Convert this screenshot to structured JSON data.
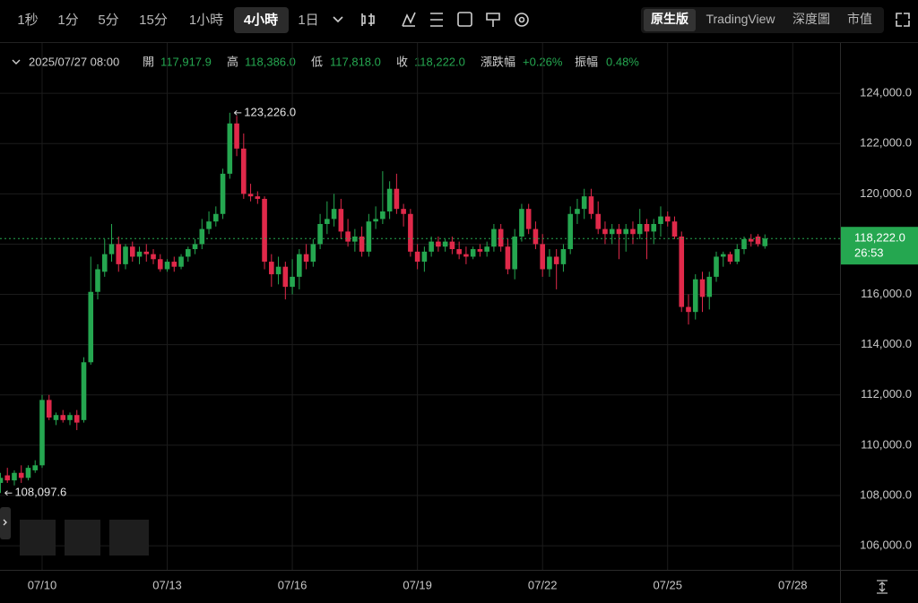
{
  "toolbar": {
    "intervals": [
      "1秒",
      "1分",
      "5分",
      "15分",
      "1小時",
      "4小時",
      "1日"
    ],
    "views": [
      "原生版",
      "TradingView",
      "深度圖",
      "市值"
    ]
  },
  "header": {
    "time": "2025/07/27 08:00",
    "fields": [
      {
        "label": "開",
        "value": "117,917.9"
      },
      {
        "label": "高",
        "value": "118,386.0"
      },
      {
        "label": "低",
        "value": "117,818.0"
      },
      {
        "label": "收",
        "value": "118,222.0"
      },
      {
        "label": "漲跌幅",
        "value": "+0.26%"
      },
      {
        "label": "振幅",
        "value": "0.48%"
      }
    ]
  },
  "chart_data": {
    "type": "candlestick",
    "up_color": "#25a750",
    "down_color": "#e0294a",
    "grid": true,
    "open": [
      108500,
      108800,
      108600,
      108900,
      108700,
      109000,
      109200,
      111800,
      111000,
      111200,
      111000,
      111200,
      111000,
      113300,
      116100,
      116900,
      117600,
      118000,
      117200,
      117900,
      117500,
      117700,
      117600,
      117400,
      117000,
      117300,
      117100,
      117500,
      117800,
      118000,
      118600,
      118900,
      119200,
      120800,
      122800,
      121800,
      120000,
      119900,
      119800,
      117300,
      116800,
      117100,
      116300,
      116700,
      117600,
      117300,
      118000,
      118800,
      119000,
      119400,
      118500,
      118100,
      118300,
      117700,
      118900,
      119000,
      119300,
      120200,
      119400,
      119200,
      117700,
      117300,
      117700,
      118100,
      117900,
      118100,
      117800,
      117600,
      117500,
      117800,
      117700,
      117900,
      118600,
      117900,
      117000,
      118300,
      119400,
      118600,
      118000,
      117000,
      117500,
      117200,
      117800,
      119200,
      119400,
      119900,
      119200,
      118600,
      118400,
      118600,
      118400,
      118600,
      118400,
      118800,
      118500,
      118800,
      119100,
      118900,
      118300,
      115500,
      115300,
      116600,
      115900,
      116700,
      117500,
      117600,
      117300,
      117800,
      118200,
      118300,
      117917.9
    ],
    "high": [
      108900,
      109100,
      109000,
      109200,
      109200,
      109400,
      112000,
      112000,
      111300,
      111400,
      111300,
      111400,
      113500,
      117500,
      117200,
      118200,
      118800,
      118300,
      118000,
      118100,
      117900,
      118000,
      117800,
      117600,
      117400,
      117500,
      117600,
      117900,
      118200,
      119000,
      119300,
      119500,
      121000,
      123226,
      123100,
      122400,
      120400,
      120100,
      119900,
      117600,
      117500,
      117300,
      117400,
      117800,
      118000,
      118200,
      119200,
      119700,
      120000,
      119800,
      119000,
      118600,
      118700,
      119200,
      119500,
      120900,
      120500,
      120800,
      119600,
      119400,
      118000,
      117900,
      118300,
      118300,
      118200,
      118300,
      118100,
      117900,
      117900,
      118000,
      118100,
      118800,
      118800,
      118200,
      118600,
      119600,
      119600,
      118900,
      118400,
      117800,
      117800,
      118000,
      119500,
      119800,
      120200,
      120200,
      119700,
      118900,
      118800,
      118800,
      118800,
      118900,
      119400,
      119000,
      119000,
      119500,
      119300,
      119100,
      118500,
      116000,
      116800,
      116900,
      116900,
      117700,
      117700,
      117700,
      118000,
      118300,
      118400,
      118400,
      118386
    ],
    "low": [
      108097.6,
      108500,
      108400,
      108500,
      108600,
      108900,
      109100,
      111000,
      110800,
      110900,
      110800,
      110600,
      110900,
      113200,
      115800,
      116700,
      117300,
      116900,
      117000,
      117300,
      117200,
      117300,
      117200,
      116900,
      116900,
      116900,
      117000,
      117300,
      117600,
      117800,
      118400,
      118700,
      119000,
      120600,
      121500,
      119800,
      119700,
      119600,
      117000,
      116300,
      116400,
      115800,
      116000,
      116200,
      117000,
      117100,
      117800,
      118400,
      118700,
      118200,
      117900,
      117700,
      117500,
      117500,
      118600,
      118800,
      119000,
      119200,
      118700,
      117500,
      117000,
      116900,
      117500,
      117700,
      117700,
      117600,
      117400,
      117200,
      117400,
      117500,
      117500,
      117700,
      117700,
      116800,
      116600,
      118100,
      118400,
      117800,
      116700,
      116700,
      116200,
      116900,
      117600,
      118800,
      119000,
      119000,
      118400,
      118000,
      118000,
      117400,
      117700,
      118000,
      118200,
      117400,
      118000,
      118300,
      118700,
      118200,
      115300,
      114800,
      115000,
      115300,
      115400,
      116500,
      117100,
      117200,
      117200,
      117600,
      117900,
      117900,
      117818
    ],
    "close": [
      108700,
      108600,
      108900,
      108700,
      109100,
      109200,
      111800,
      111100,
      111200,
      111000,
      111200,
      110900,
      113300,
      116100,
      117000,
      117600,
      118000,
      117200,
      117900,
      117500,
      117700,
      117600,
      117400,
      117000,
      117300,
      117100,
      117500,
      117800,
      118000,
      118600,
      118900,
      119200,
      120800,
      122800,
      121800,
      120000,
      119900,
      119800,
      117300,
      116800,
      117100,
      116300,
      116700,
      117600,
      117300,
      118000,
      118800,
      119000,
      119400,
      118500,
      118100,
      118300,
      117700,
      118900,
      119000,
      119300,
      120200,
      119400,
      119200,
      117700,
      117300,
      117700,
      118100,
      117900,
      118100,
      117800,
      117600,
      117500,
      117800,
      117700,
      117900,
      118600,
      117900,
      117000,
      118300,
      119400,
      118600,
      118000,
      117000,
      117500,
      117200,
      117800,
      119200,
      119400,
      119900,
      119200,
      118600,
      118400,
      118600,
      118400,
      118600,
      118400,
      118800,
      118500,
      118800,
      119100,
      118900,
      118300,
      115500,
      115300,
      116600,
      115900,
      116700,
      117500,
      117600,
      117300,
      117800,
      118200,
      118100,
      118000,
      118222
    ],
    "high_label": "123,226.0",
    "low_label": "108,097.6",
    "last_price": {
      "value": 118222,
      "label": "118,222.0"
    },
    "countdown": "26:53",
    "xlim": [
      -0.06,
      120.8
    ],
    "xticks": [
      {
        "value": 6,
        "label": "07/10"
      },
      {
        "value": 24,
        "label": "07/13"
      },
      {
        "value": 42,
        "label": "07/16"
      },
      {
        "value": 60,
        "label": "07/19"
      },
      {
        "value": 78,
        "label": "07/22"
      },
      {
        "value": 96,
        "label": "07/25"
      },
      {
        "value": 114,
        "label": "07/28"
      }
    ],
    "ylim": [
      105041,
      126000
    ],
    "yticks": [
      {
        "value": 106000,
        "label": "106,000.0"
      },
      {
        "value": 108000,
        "label": "108,000.0"
      },
      {
        "value": 110000,
        "label": "110,000.0"
      },
      {
        "value": 112000,
        "label": "112,000.0"
      },
      {
        "value": 114000,
        "label": "114,000.0"
      },
      {
        "value": 116000,
        "label": "116,000.0"
      },
      {
        "value": 118000,
        "label": "118,000.0"
      },
      {
        "value": 120000,
        "label": "120,000.0"
      },
      {
        "value": 122000,
        "label": "122,000.0"
      },
      {
        "value": 124000,
        "label": "124,000.0"
      }
    ]
  }
}
